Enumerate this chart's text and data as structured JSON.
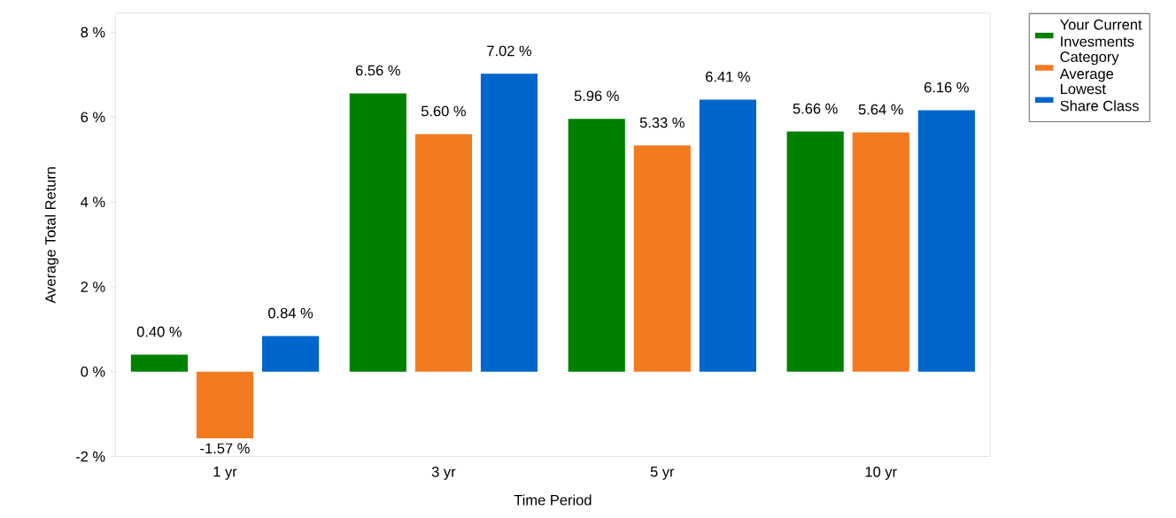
{
  "chart_data": {
    "type": "bar",
    "xlabel": "Time Period",
    "ylabel": "Average Total Return",
    "categories": [
      "1 yr",
      "3 yr",
      "5 yr",
      "10 yr"
    ],
    "series": [
      {
        "name": "Your Current Invesments",
        "color": "#008000",
        "values": [
          0.4,
          6.56,
          5.96,
          5.66
        ],
        "value_labels": [
          "0.40 %",
          "6.56 %",
          "5.96 %",
          "5.66 %"
        ]
      },
      {
        "name": "Category Average",
        "color": "#f27b20",
        "values": [
          -1.57,
          5.6,
          5.33,
          5.64
        ],
        "value_labels": [
          "-1.57 %",
          "5.60 %",
          "5.33 %",
          "5.64 %"
        ]
      },
      {
        "name": "Lowest Share Class",
        "color": "#0066cc",
        "values": [
          0.84,
          7.02,
          6.41,
          6.16
        ],
        "value_labels": [
          "0.84 %",
          "7.02 %",
          "6.41 %",
          "6.16 %"
        ]
      }
    ],
    "ylim": [
      -2,
      8.45
    ],
    "yticks": [
      {
        "value": -2,
        "label": "-2 %"
      },
      {
        "value": 0,
        "label": "0 %"
      },
      {
        "value": 2,
        "label": "2 %"
      },
      {
        "value": 4,
        "label": "4 %"
      },
      {
        "value": 6,
        "label": "6 %"
      },
      {
        "value": 8,
        "label": "8 %"
      }
    ],
    "legend": "top right",
    "grid": false
  }
}
